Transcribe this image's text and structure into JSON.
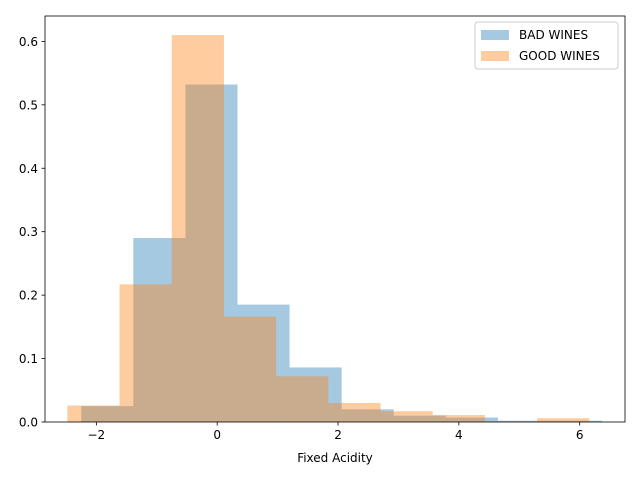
{
  "chart_data": {
    "type": "bar",
    "title": "",
    "xlabel": "Fixed Acidity",
    "ylabel": "",
    "xlim": [
      -2.85,
      6.75
    ],
    "ylim": [
      0,
      0.64
    ],
    "grid": false,
    "legend_position": "top-right",
    "xticks": [
      -2,
      0,
      2,
      4,
      6
    ],
    "xtick_labels": [
      "−2",
      "0",
      "2",
      "4",
      "6"
    ],
    "yticks": [
      0.0,
      0.1,
      0.2,
      0.3,
      0.4,
      0.5,
      0.6
    ],
    "ytick_labels": [
      "0.0",
      "0.1",
      "0.2",
      "0.3",
      "0.4",
      "0.5",
      "0.6"
    ],
    "series": [
      {
        "name": "BAD WINES",
        "color": "#1f77b4",
        "opacity": 0.4,
        "bin_edges": [
          -2.25,
          -1.388,
          -0.526,
          0.336,
          1.198,
          2.06,
          2.922,
          3.784,
          4.646,
          5.508,
          6.37
        ],
        "values": [
          0.025,
          0.29,
          0.532,
          0.185,
          0.086,
          0.02,
          0.01,
          0.007,
          0.002,
          0.002
        ]
      },
      {
        "name": "GOOD WINES",
        "color": "#ff7f0e",
        "opacity": 0.4,
        "bin_edges": [
          -2.48,
          -1.616,
          -0.752,
          0.112,
          0.976,
          1.84,
          2.704,
          3.568,
          4.432,
          5.296,
          6.16
        ],
        "values": [
          0.026,
          0.217,
          0.61,
          0.166,
          0.072,
          0.03,
          0.017,
          0.011,
          0.001,
          0.006
        ]
      }
    ]
  }
}
